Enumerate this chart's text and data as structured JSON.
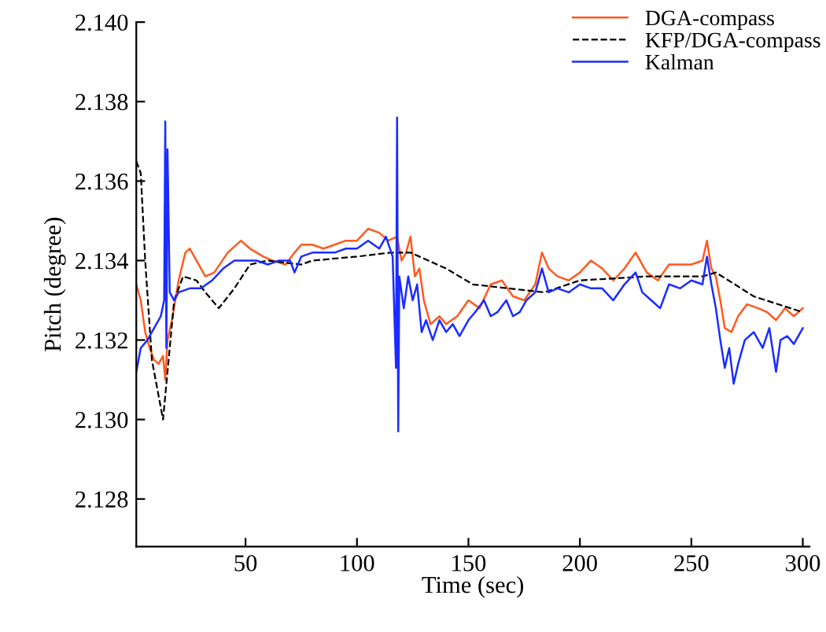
{
  "chart_data": {
    "type": "line",
    "xlabel": "Time (sec)",
    "ylabel": "Pitch (degree)",
    "xlim": [
      1,
      303
    ],
    "ylim": [
      2.1268,
      2.14
    ],
    "xticks": [
      50,
      100,
      150,
      200,
      250,
      300
    ],
    "yticks": [
      {
        "value": 2.128,
        "label": "2.128"
      },
      {
        "value": 2.13,
        "label": "2.130"
      },
      {
        "value": 2.132,
        "label": "2.132"
      },
      {
        "value": 2.134,
        "label": "2.134"
      },
      {
        "value": 2.136,
        "label": "2.136"
      },
      {
        "value": 2.138,
        "label": "2.138"
      },
      {
        "value": 2.14,
        "label": "2.140"
      }
    ],
    "grid": false,
    "legend": "top right",
    "marker": "none",
    "series": [
      {
        "name": "DGA-compass",
        "color": "#ff5a1e",
        "line_style": "solid",
        "x": [
          1,
          3,
          5,
          7,
          9,
          11,
          13,
          14,
          15,
          17,
          20,
          23,
          25,
          28,
          32,
          36,
          42,
          48,
          52,
          58,
          62,
          68,
          72,
          75,
          80,
          85,
          90,
          95,
          100,
          105,
          110,
          114,
          118,
          120,
          122,
          124,
          126,
          128,
          130,
          133,
          137,
          140,
          145,
          150,
          155,
          160,
          165,
          170,
          175,
          180,
          183,
          186,
          190,
          195,
          200,
          205,
          210,
          215,
          220,
          225,
          230,
          235,
          240,
          245,
          250,
          255,
          257,
          259,
          261,
          263,
          265,
          268,
          271,
          275,
          280,
          284,
          288,
          292,
          296,
          300
        ],
        "values": [
          2.1334,
          2.133,
          2.1322,
          2.1318,
          2.1315,
          2.1314,
          2.1316,
          2.131,
          2.132,
          2.1325,
          2.1335,
          2.1342,
          2.1343,
          2.134,
          2.1336,
          2.1337,
          2.1342,
          2.1345,
          2.1343,
          2.1341,
          2.134,
          2.1339,
          2.1342,
          2.1344,
          2.1344,
          2.1343,
          2.1344,
          2.1345,
          2.1345,
          2.1348,
          2.1347,
          2.1345,
          2.1346,
          2.134,
          2.1342,
          2.1346,
          2.1336,
          2.1338,
          2.133,
          2.1324,
          2.1326,
          2.1324,
          2.1326,
          2.133,
          2.1328,
          2.1334,
          2.1335,
          2.1331,
          2.133,
          2.1334,
          2.1342,
          2.1338,
          2.1336,
          2.1335,
          2.1337,
          2.134,
          2.1338,
          2.1335,
          2.1338,
          2.1342,
          2.1337,
          2.1335,
          2.1339,
          2.1339,
          2.1339,
          2.134,
          2.1345,
          2.1338,
          2.1336,
          2.133,
          2.1323,
          2.1322,
          2.1326,
          2.1329,
          2.1328,
          2.1327,
          2.1325,
          2.1328,
          2.1326,
          2.1328
        ]
      },
      {
        "name": "KFP/DGA-compass",
        "color": "#000000",
        "line_style": "dashed",
        "x": [
          1,
          3,
          5,
          8,
          13,
          18,
          22,
          28,
          32,
          38,
          45,
          52,
          60,
          75,
          80,
          100,
          115,
          124,
          140,
          152,
          184,
          200,
          230,
          255,
          261,
          278,
          300
        ],
        "values": [
          2.1365,
          2.1362,
          2.134,
          2.1315,
          2.13,
          2.133,
          2.1336,
          2.1335,
          2.1332,
          2.1328,
          2.1333,
          2.1339,
          2.134,
          2.1339,
          2.134,
          2.1341,
          2.1342,
          2.1342,
          2.1338,
          2.1334,
          2.1332,
          2.1335,
          2.1336,
          2.1336,
          2.1337,
          2.1331,
          2.1327
        ]
      },
      {
        "name": "Kalman",
        "color": "#1a2cff",
        "line_style": "solid",
        "x": [
          1,
          3,
          6,
          9,
          12,
          13.5,
          14,
          14.5,
          15,
          16,
          18,
          20,
          25,
          30,
          35,
          40,
          45,
          50,
          55,
          60,
          65,
          70,
          72,
          75,
          80,
          85,
          90,
          95,
          100,
          105,
          110,
          113,
          116,
          117.5,
          118,
          118.5,
          119,
          121,
          123,
          125,
          127,
          129,
          131,
          134,
          137,
          140,
          143,
          146,
          150,
          153,
          157,
          160,
          163,
          167,
          170,
          173,
          176,
          180,
          183,
          186,
          190,
          195,
          200,
          205,
          210,
          215,
          220,
          225,
          228,
          232,
          236,
          240,
          245,
          250,
          255,
          257,
          259,
          261,
          263,
          265,
          267,
          269,
          271,
          274,
          278,
          282,
          285,
          288,
          290,
          293,
          296,
          300
        ],
        "values": [
          2.1312,
          2.1318,
          2.132,
          2.1323,
          2.1326,
          2.133,
          2.1375,
          2.1318,
          2.1368,
          2.1332,
          2.133,
          2.1332,
          2.1333,
          2.1333,
          2.1335,
          2.1338,
          2.134,
          2.134,
          2.134,
          2.1339,
          2.134,
          2.134,
          2.1337,
          2.1341,
          2.1342,
          2.1342,
          2.1342,
          2.1343,
          2.1343,
          2.1345,
          2.1343,
          2.1346,
          2.1341,
          2.1313,
          2.1376,
          2.1297,
          2.1336,
          2.1328,
          2.1336,
          2.133,
          2.1334,
          2.1322,
          2.1325,
          2.132,
          2.1325,
          2.1322,
          2.1324,
          2.1321,
          2.1325,
          2.1327,
          2.133,
          2.1326,
          2.1327,
          2.133,
          2.1326,
          2.1327,
          2.133,
          2.1332,
          2.1338,
          2.1332,
          2.1333,
          2.1332,
          2.1334,
          2.1333,
          2.1333,
          2.133,
          2.1334,
          2.1337,
          2.1332,
          2.133,
          2.1328,
          2.1334,
          2.1333,
          2.1335,
          2.1334,
          2.1341,
          2.1334,
          2.1328,
          2.132,
          2.1313,
          2.1318,
          2.1309,
          2.1314,
          2.132,
          2.1322,
          2.1318,
          2.1323,
          2.1312,
          2.132,
          2.1321,
          2.1319,
          2.1323
        ]
      }
    ]
  }
}
